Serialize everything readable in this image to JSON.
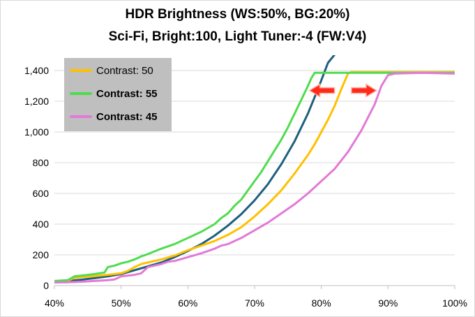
{
  "chart_data": {
    "type": "line",
    "title": [
      "HDR Brightness (WS:50%, BG:20%)",
      "Sci-Fi, Bright:100, Light Tuner:-4 (FW:V4)"
    ],
    "xlabel": "",
    "ylabel": "",
    "xlim": [
      40,
      100
    ],
    "ylim": [
      0,
      1500
    ],
    "x_ticks": [
      "40%",
      "50%",
      "60%",
      "70%",
      "80%",
      "90%",
      "100%"
    ],
    "y_ticks": [
      "0",
      "200",
      "400",
      "600",
      "800",
      "1,000",
      "1,200",
      "1,400"
    ],
    "grid": "horizontal",
    "legend": {
      "position": "top-left",
      "entries": [
        {
          "label": "Contrast: 50",
          "bold": false,
          "color": "#ffc000"
        },
        {
          "label": "Contrast: 55",
          "bold": true,
          "color": "#4fdc4f"
        },
        {
          "label": "Contrast: 45",
          "bold": true,
          "color": "#e27ad6"
        }
      ]
    },
    "colors": {
      "reference": "#1f5f7f",
      "arrow": "#ff2a1a",
      "legend_box": "#bfbfbf",
      "grid": "#d9d9d9"
    },
    "series": [
      {
        "color": "#1f5f7f",
        "points": [
          [
            40,
            25
          ],
          [
            42,
            30
          ],
          [
            44,
            38
          ],
          [
            46,
            48
          ],
          [
            48,
            60
          ],
          [
            50,
            75
          ],
          [
            52,
            100
          ],
          [
            54,
            125
          ],
          [
            56,
            150
          ],
          [
            58,
            185
          ],
          [
            60,
            225
          ],
          [
            62,
            270
          ],
          [
            64,
            325
          ],
          [
            66,
            390
          ],
          [
            68,
            465
          ],
          [
            70,
            555
          ],
          [
            72,
            660
          ],
          [
            74,
            790
          ],
          [
            76,
            940
          ],
          [
            78,
            1120
          ],
          [
            79.5,
            1280
          ],
          [
            81,
            1450
          ],
          [
            82.3,
            1520
          ]
        ]
      },
      {
        "name": "Contrast: 50",
        "color": "#ffc000",
        "points": [
          [
            40,
            25
          ],
          [
            42,
            32
          ],
          [
            43,
            50
          ],
          [
            44,
            55
          ],
          [
            46,
            62
          ],
          [
            48,
            70
          ],
          [
            50,
            80
          ],
          [
            51,
            95
          ],
          [
            52,
            120
          ],
          [
            53,
            140
          ],
          [
            54,
            150
          ],
          [
            56,
            170
          ],
          [
            58,
            195
          ],
          [
            60,
            230
          ],
          [
            62,
            260
          ],
          [
            64,
            290
          ],
          [
            66,
            330
          ],
          [
            68,
            380
          ],
          [
            70,
            450
          ],
          [
            72,
            530
          ],
          [
            74,
            620
          ],
          [
            76,
            730
          ],
          [
            78,
            850
          ],
          [
            79,
            920
          ],
          [
            80,
            1000
          ],
          [
            81,
            1080
          ],
          [
            82,
            1170
          ],
          [
            83,
            1280
          ],
          [
            84,
            1380
          ],
          [
            84.5,
            1390
          ],
          [
            90,
            1390
          ],
          [
            95,
            1390
          ],
          [
            100,
            1390
          ]
        ]
      },
      {
        "name": "Contrast: 55",
        "color": "#4fdc4f",
        "points": [
          [
            40,
            30
          ],
          [
            42,
            35
          ],
          [
            43,
            60
          ],
          [
            44,
            65
          ],
          [
            46,
            75
          ],
          [
            47.5,
            85
          ],
          [
            48,
            120
          ],
          [
            49,
            130
          ],
          [
            50,
            145
          ],
          [
            51,
            155
          ],
          [
            52,
            170
          ],
          [
            53,
            190
          ],
          [
            54,
            205
          ],
          [
            56,
            240
          ],
          [
            58,
            270
          ],
          [
            60,
            310
          ],
          [
            62,
            350
          ],
          [
            64,
            400
          ],
          [
            65,
            440
          ],
          [
            66,
            470
          ],
          [
            67,
            520
          ],
          [
            68,
            560
          ],
          [
            69,
            620
          ],
          [
            70,
            680
          ],
          [
            71,
            740
          ],
          [
            72,
            810
          ],
          [
            73,
            880
          ],
          [
            74,
            950
          ],
          [
            75,
            1030
          ],
          [
            76,
            1120
          ],
          [
            77,
            1210
          ],
          [
            78,
            1300
          ],
          [
            78.5,
            1350
          ],
          [
            79,
            1385
          ],
          [
            84,
            1385
          ],
          [
            90,
            1385
          ],
          [
            95,
            1385
          ],
          [
            100,
            1385
          ]
        ]
      },
      {
        "name": "Contrast: 45",
        "color": "#e27ad6",
        "points": [
          [
            40,
            20
          ],
          [
            42,
            22
          ],
          [
            44,
            25
          ],
          [
            46,
            30
          ],
          [
            48,
            35
          ],
          [
            49,
            40
          ],
          [
            50,
            60
          ],
          [
            52,
            70
          ],
          [
            53,
            80
          ],
          [
            54,
            120
          ],
          [
            56,
            140
          ],
          [
            57,
            155
          ],
          [
            58,
            160
          ],
          [
            60,
            185
          ],
          [
            62,
            210
          ],
          [
            64,
            240
          ],
          [
            65,
            260
          ],
          [
            66,
            270
          ],
          [
            68,
            310
          ],
          [
            70,
            360
          ],
          [
            72,
            410
          ],
          [
            74,
            470
          ],
          [
            76,
            530
          ],
          [
            78,
            600
          ],
          [
            80,
            680
          ],
          [
            82,
            760
          ],
          [
            84,
            870
          ],
          [
            86,
            1010
          ],
          [
            88,
            1180
          ],
          [
            89,
            1300
          ],
          [
            90,
            1370
          ],
          [
            91,
            1380
          ],
          [
            95,
            1385
          ],
          [
            100,
            1380
          ]
        ]
      }
    ],
    "annotations": [
      {
        "type": "arrow",
        "direction": "left",
        "center": [
          80.1,
          1270
        ]
      },
      {
        "type": "arrow",
        "direction": "right",
        "center": [
          86.4,
          1270
        ]
      }
    ]
  }
}
